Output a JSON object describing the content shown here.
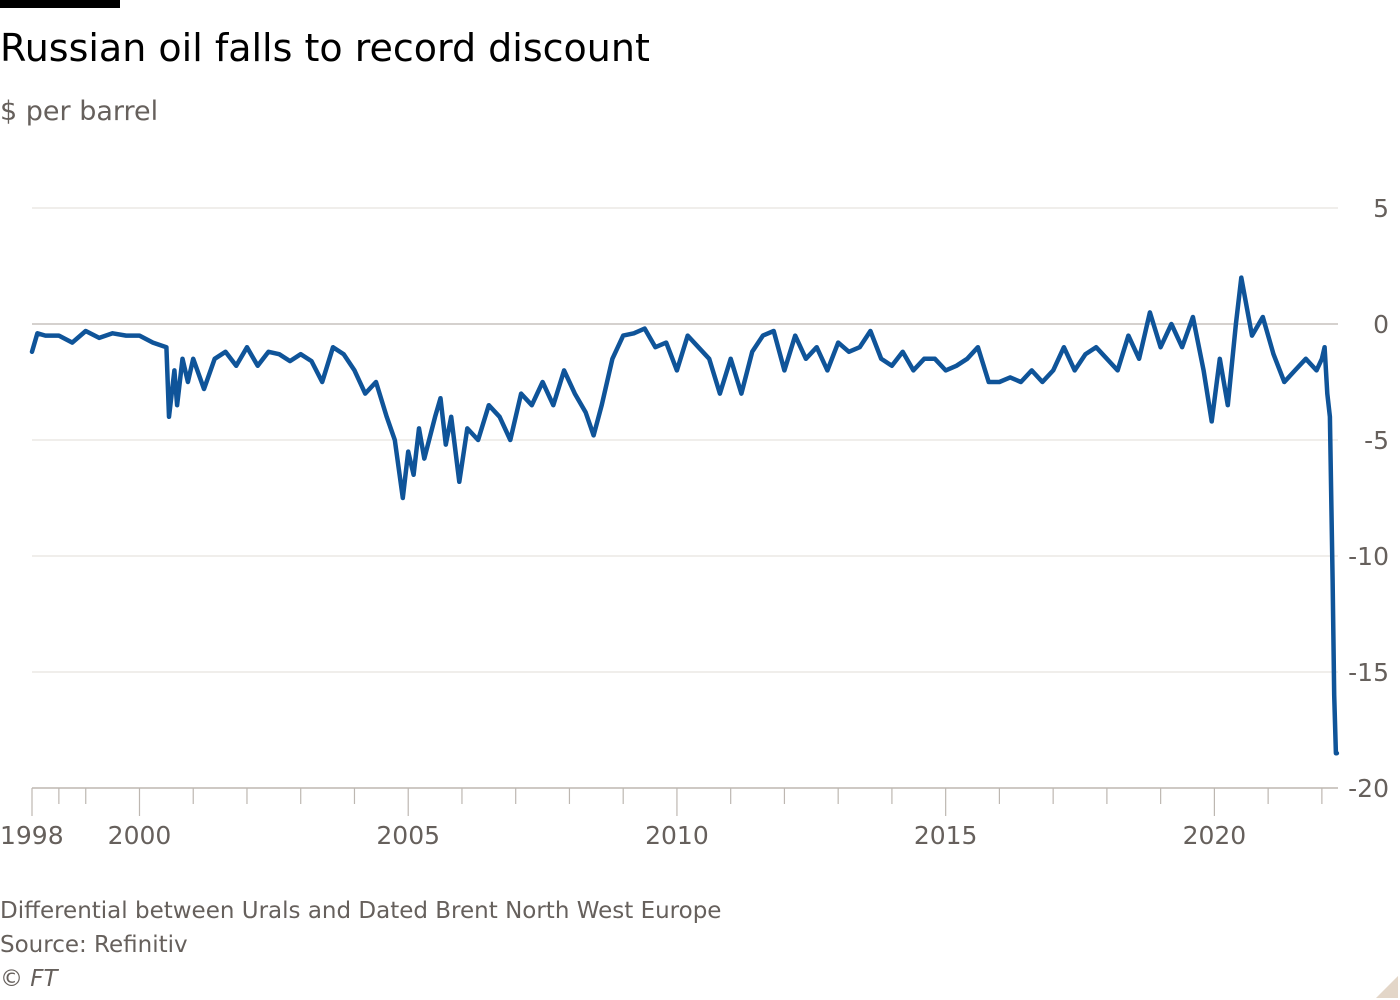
{
  "header": {
    "title": "Russian oil falls to record discount",
    "subtitle": "$ per barrel"
  },
  "footer": {
    "note": "Differential between Urals and Dated Brent North West Europe",
    "source": "Source: Refinitiv",
    "copyright": "© FT"
  },
  "colors": {
    "line": "#0f5499",
    "grid": "#e6e3df",
    "zero": "#c7c2bd",
    "axis": "#bdb7b1",
    "text": "#66605c"
  },
  "chart_data": {
    "type": "line",
    "title": "Russian oil falls to record discount",
    "subtitle": "$ per barrel",
    "xlabel": "",
    "ylabel": "",
    "ylim": [
      -20,
      5
    ],
    "xlim": [
      1998,
      2022.3
    ],
    "yticks": [
      5,
      0,
      -5,
      -10,
      -15,
      -20
    ],
    "xticks_labeled": [
      1998,
      2000,
      2005,
      2010,
      2015,
      2020
    ],
    "xticks_minor": [
      1998.5,
      1999,
      2001,
      2002,
      2003,
      2004,
      2006,
      2007,
      2008,
      2009,
      2011,
      2012,
      2013,
      2014,
      2016,
      2017,
      2018,
      2019,
      2021,
      2022
    ],
    "y_axis_position": "right",
    "grid": true,
    "series": [
      {
        "x": [
          1998.0,
          1998.1,
          1998.25,
          1998.5,
          1998.75,
          1999.0,
          1999.25,
          1999.5,
          1999.75,
          2000.0,
          2000.25,
          2000.5,
          2000.55,
          2000.65,
          2000.7,
          2000.8,
          2000.9,
          2001.0,
          2001.2,
          2001.4,
          2001.6,
          2001.8,
          2002.0,
          2002.2,
          2002.4,
          2002.6,
          2002.8,
          2003.0,
          2003.2,
          2003.4,
          2003.6,
          2003.8,
          2004.0,
          2004.2,
          2004.4,
          2004.6,
          2004.75,
          2004.9,
          2005.0,
          2005.1,
          2005.2,
          2005.3,
          2005.5,
          2005.6,
          2005.7,
          2005.8,
          2005.95,
          2006.1,
          2006.3,
          2006.5,
          2006.7,
          2006.9,
          2007.1,
          2007.3,
          2007.5,
          2007.7,
          2007.9,
          2008.1,
          2008.3,
          2008.45,
          2008.6,
          2008.8,
          2009.0,
          2009.2,
          2009.4,
          2009.6,
          2009.8,
          2010.0,
          2010.2,
          2010.4,
          2010.6,
          2010.8,
          2011.0,
          2011.2,
          2011.4,
          2011.6,
          2011.8,
          2012.0,
          2012.2,
          2012.4,
          2012.6,
          2012.8,
          2013.0,
          2013.2,
          2013.4,
          2013.6,
          2013.8,
          2014.0,
          2014.2,
          2014.4,
          2014.6,
          2014.8,
          2015.0,
          2015.2,
          2015.4,
          2015.6,
          2015.8,
          2016.0,
          2016.2,
          2016.4,
          2016.6,
          2016.8,
          2017.0,
          2017.2,
          2017.4,
          2017.6,
          2017.8,
          2018.0,
          2018.2,
          2018.4,
          2018.6,
          2018.8,
          2019.0,
          2019.2,
          2019.4,
          2019.6,
          2019.8,
          2019.95,
          2020.1,
          2020.25,
          2020.4,
          2020.5,
          2020.7,
          2020.9,
          2021.1,
          2021.3,
          2021.5,
          2021.7,
          2021.9,
          2022.0,
          2022.05,
          2022.1,
          2022.15,
          2022.2,
          2022.23,
          2022.26,
          2022.28
        ],
        "values": [
          -1.2,
          -0.4,
          -0.5,
          -0.5,
          -0.8,
          -0.3,
          -0.6,
          -0.4,
          -0.5,
          -0.5,
          -0.8,
          -1.0,
          -4.0,
          -2.0,
          -3.5,
          -1.5,
          -2.5,
          -1.5,
          -2.8,
          -1.5,
          -1.2,
          -1.8,
          -1.0,
          -1.8,
          -1.2,
          -1.3,
          -1.6,
          -1.3,
          -1.6,
          -2.5,
          -1.0,
          -1.3,
          -2.0,
          -3.0,
          -2.5,
          -4.0,
          -5.0,
          -7.5,
          -5.5,
          -6.5,
          -4.5,
          -5.8,
          -4.0,
          -3.2,
          -5.2,
          -4.0,
          -6.8,
          -4.5,
          -5.0,
          -3.5,
          -4.0,
          -5.0,
          -3.0,
          -3.5,
          -2.5,
          -3.5,
          -2.0,
          -3.0,
          -3.8,
          -4.8,
          -3.5,
          -1.5,
          -0.5,
          -0.4,
          -0.2,
          -1.0,
          -0.8,
          -2.0,
          -0.5,
          -1.0,
          -1.5,
          -3.0,
          -1.5,
          -3.0,
          -1.2,
          -0.5,
          -0.3,
          -2.0,
          -0.5,
          -1.5,
          -1.0,
          -2.0,
          -0.8,
          -1.2,
          -1.0,
          -0.3,
          -1.5,
          -1.8,
          -1.2,
          -2.0,
          -1.5,
          -1.5,
          -2.0,
          -1.8,
          -1.5,
          -1.0,
          -2.5,
          -2.5,
          -2.3,
          -2.5,
          -2.0,
          -2.5,
          -2.0,
          -1.0,
          -2.0,
          -1.3,
          -1.0,
          -1.5,
          -2.0,
          -0.5,
          -1.5,
          0.5,
          -1.0,
          0.0,
          -1.0,
          0.3,
          -2.0,
          -4.2,
          -1.5,
          -3.5,
          0.0,
          2.0,
          -0.5,
          0.3,
          -1.3,
          -2.5,
          -2.0,
          -1.5,
          -2.0,
          -1.5,
          -1.0,
          -3.0,
          -4.0,
          -11.0,
          -16.0,
          -18.5,
          -18.5
        ]
      }
    ]
  }
}
